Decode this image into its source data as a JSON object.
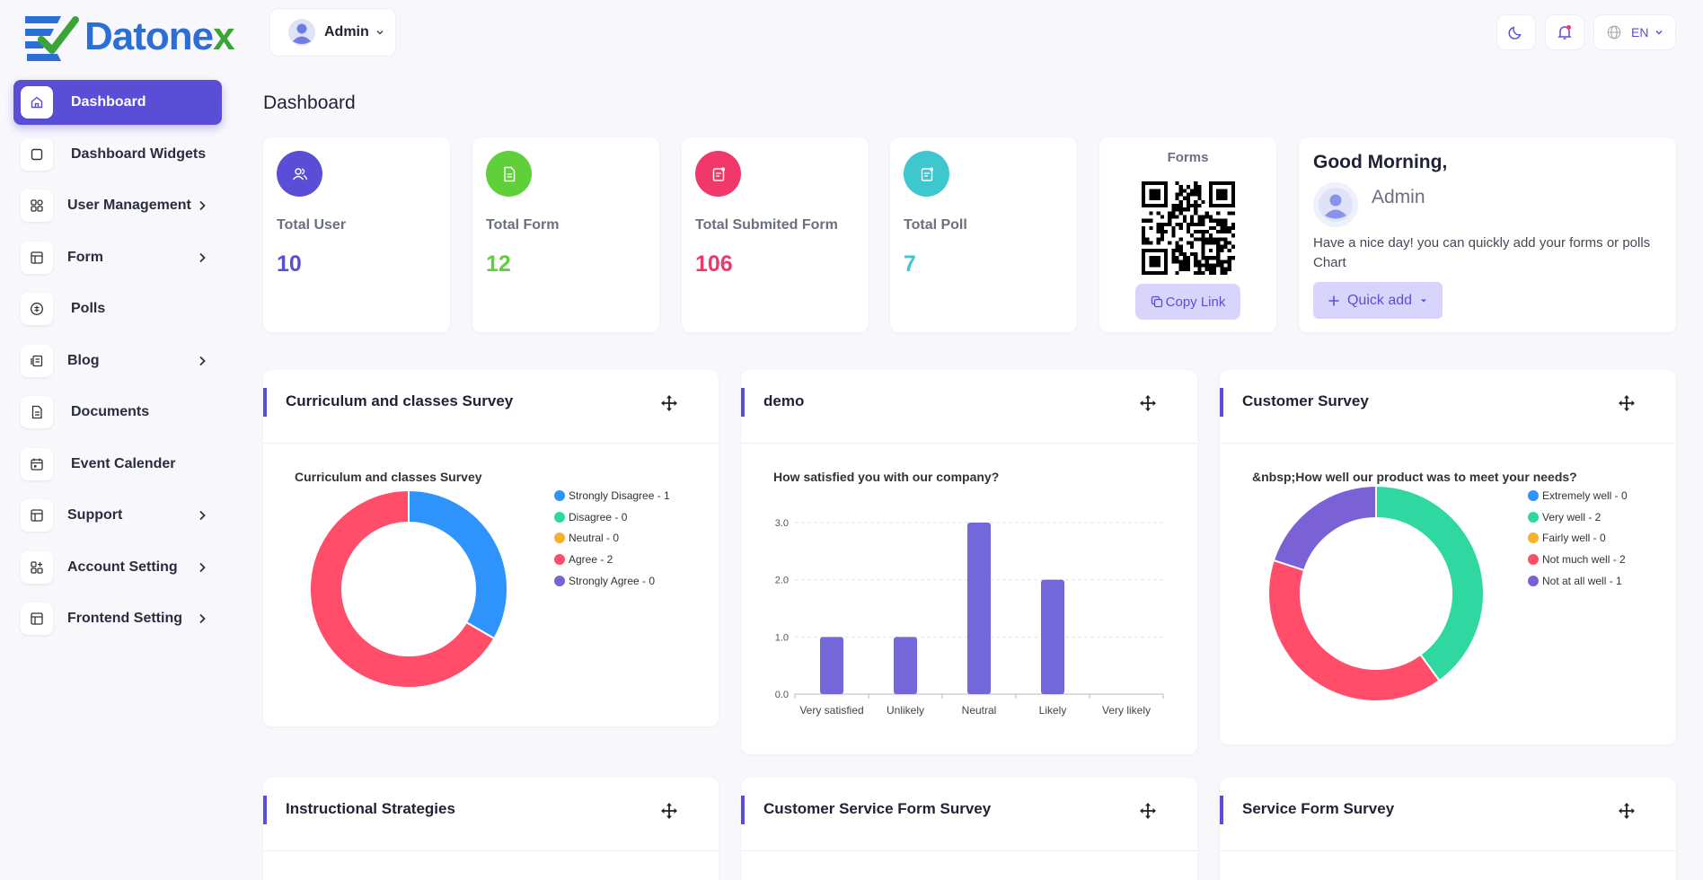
{
  "app": {
    "name_main": "Datone",
    "name_accent": "x"
  },
  "topbar": {
    "user_name": "Admin",
    "language": "EN"
  },
  "sidebar": {
    "items": [
      {
        "label": "Dashboard",
        "icon": "home-icon",
        "active": true
      },
      {
        "label": "Dashboard Widgets",
        "icon": "square-icon"
      },
      {
        "label": "User Management",
        "icon": "grid-icon",
        "expandable": true
      },
      {
        "label": "Form",
        "icon": "table-icon",
        "expandable": true
      },
      {
        "label": "Polls",
        "icon": "poll-icon"
      },
      {
        "label": "Blog",
        "icon": "blog-icon",
        "expandable": true
      },
      {
        "label": "Documents",
        "icon": "document-icon"
      },
      {
        "label": "Event Calender",
        "icon": "calendar-icon"
      },
      {
        "label": "Support",
        "icon": "table-icon",
        "expandable": true
      },
      {
        "label": "Account Setting",
        "icon": "grid-plus-icon",
        "expandable": true
      },
      {
        "label": "Frontend Setting",
        "icon": "table-icon",
        "expandable": true
      }
    ]
  },
  "page": {
    "title": "Dashboard"
  },
  "stats": [
    {
      "label": "Total User",
      "value": "10",
      "color": "#5b4ed6",
      "icon": "users-icon"
    },
    {
      "label": "Total Form",
      "value": "12",
      "color": "#5fcf3a",
      "icon": "form-icon"
    },
    {
      "label": "Total Submited Form",
      "value": "106",
      "color": "#f0386b",
      "icon": "submitted-form-icon"
    },
    {
      "label": "Total Poll",
      "value": "7",
      "color": "#3ec7cf",
      "icon": "poll-doc-icon"
    }
  ],
  "forms_card": {
    "title": "Forms",
    "button": "Copy Link"
  },
  "greeting": {
    "title": "Good Morning,",
    "name": "Admin",
    "text": "Have a nice day! you can quickly add your forms or polls Chart",
    "button": "Quick add"
  },
  "widgets": [
    {
      "title": "Curriculum and classes Survey"
    },
    {
      "title": "demo"
    },
    {
      "title": "Customer Survey"
    },
    {
      "title": "Instructional Strategies"
    },
    {
      "title": "Customer Service Form Survey"
    },
    {
      "title": "Service Form Survey"
    }
  ],
  "chart_data": [
    {
      "type": "pie",
      "title": "Curriculum and classes Survey",
      "categories": [
        "Strongly Disagree",
        "Disagree",
        "Neutral",
        "Agree",
        "Strongly Agree"
      ],
      "values": [
        1,
        0,
        0,
        2,
        0
      ],
      "legend_labels": [
        "Strongly Disagree - 1",
        "Disagree - 0",
        "Neutral - 0",
        "Agree - 2",
        "Strongly Agree - 0"
      ],
      "colors": [
        "#2e93fa",
        "#2ed8a0",
        "#f8b12c",
        "#ff4d6a",
        "#7b61d6"
      ]
    },
    {
      "type": "bar",
      "title": "How satisfied you with our company?",
      "categories": [
        "Very satisfied",
        "Unlikely",
        "Neutral",
        "Likely",
        "Very likely"
      ],
      "values": [
        1,
        1,
        3,
        2,
        0
      ],
      "yticks": [
        "0.0",
        "1.0",
        "2.0",
        "3.0"
      ],
      "ylim": [
        0,
        3
      ],
      "color": "#7467d9"
    },
    {
      "type": "pie",
      "title": "&nbsp;How well our product was to meet your needs?",
      "categories": [
        "Extremely well",
        "Very well",
        "Fairly well",
        "Not much well",
        "Not at all well"
      ],
      "values": [
        0,
        2,
        0,
        2,
        1
      ],
      "legend_labels": [
        "Extremely well - 0",
        "Very well - 2",
        "Fairly well - 0",
        "Not much well - 2",
        "Not at all well - 1"
      ],
      "colors": [
        "#2e93fa",
        "#2ed8a0",
        "#f8b12c",
        "#ff4d6a",
        "#7b61d6"
      ]
    }
  ]
}
